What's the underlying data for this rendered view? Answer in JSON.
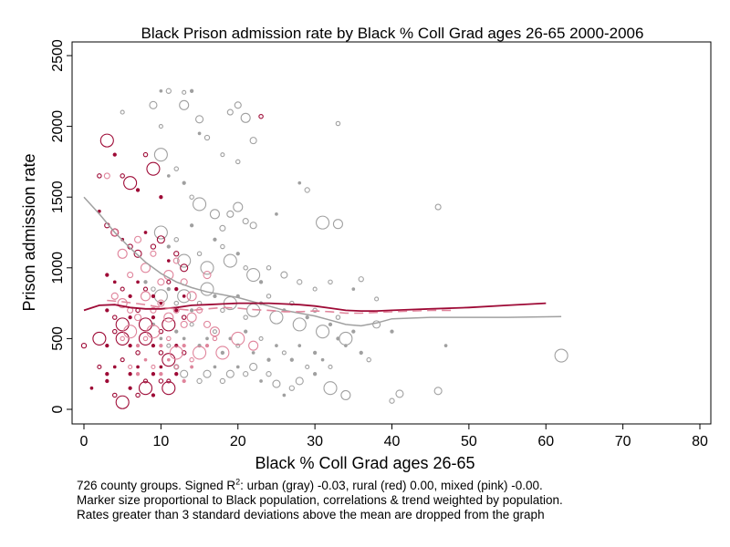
{
  "chart_data": {
    "type": "scatter",
    "title": "Black Prison admission rate by Black % Coll Grad ages 26-65 2000-2006",
    "xlabel": "Black % Coll Grad ages 26-65",
    "ylabel": "Prison admission rate",
    "xlim": [
      0,
      80
    ],
    "ylim": [
      0,
      2500
    ],
    "xticks": [
      0,
      10,
      20,
      30,
      40,
      50,
      60,
      70,
      80
    ],
    "yticks": [
      0,
      500,
      1000,
      1500,
      2000,
      2500
    ],
    "grid": false,
    "legend": "none",
    "colors": {
      "urban": "#a0a0a0",
      "rural": "#9e0a36",
      "mixed": "#e0859c"
    },
    "series": [
      {
        "group": "urban",
        "points": [
          [
            5,
            2100
          ],
          [
            9,
            2150
          ],
          [
            10,
            2250
          ],
          [
            11,
            2250
          ],
          [
            13,
            2240
          ],
          [
            14,
            2250
          ],
          [
            13,
            2150
          ],
          [
            15,
            2050
          ],
          [
            19,
            2100
          ],
          [
            20,
            2150
          ],
          [
            21,
            2060
          ],
          [
            33,
            2020
          ],
          [
            10,
            1800
          ],
          [
            10,
            2000
          ],
          [
            12,
            1700
          ],
          [
            15,
            1950
          ],
          [
            16,
            1920
          ],
          [
            18,
            1800
          ],
          [
            20,
            1750
          ],
          [
            22,
            1900
          ],
          [
            28,
            1600
          ],
          [
            29,
            1550
          ],
          [
            11,
            1650
          ],
          [
            13,
            1600
          ],
          [
            14,
            1500
          ],
          [
            15,
            1450
          ],
          [
            17,
            1380
          ],
          [
            18,
            1280
          ],
          [
            19,
            1380
          ],
          [
            20,
            1430
          ],
          [
            21,
            1330
          ],
          [
            22,
            1300
          ],
          [
            25,
            1380
          ],
          [
            31,
            1320
          ],
          [
            33,
            1310
          ],
          [
            46,
            1430
          ],
          [
            10,
            1250
          ],
          [
            11,
            1150
          ],
          [
            12,
            1200
          ],
          [
            13,
            1050
          ],
          [
            14,
            1300
          ],
          [
            15,
            1100
          ],
          [
            16,
            1000
          ],
          [
            17,
            1200
          ],
          [
            18,
            1150
          ],
          [
            19,
            1050
          ],
          [
            20,
            1100
          ],
          [
            21,
            1000
          ],
          [
            22,
            950
          ],
          [
            23,
            900
          ],
          [
            24,
            1000
          ],
          [
            26,
            950
          ],
          [
            28,
            900
          ],
          [
            30,
            850
          ],
          [
            32,
            900
          ],
          [
            35,
            850
          ],
          [
            36,
            920
          ],
          [
            38,
            780
          ],
          [
            8,
            900
          ],
          [
            9,
            850
          ],
          [
            10,
            800
          ],
          [
            11,
            850
          ],
          [
            12,
            750
          ],
          [
            13,
            800
          ],
          [
            14,
            700
          ],
          [
            15,
            750
          ],
          [
            16,
            850
          ],
          [
            17,
            800
          ],
          [
            18,
            700
          ],
          [
            19,
            750
          ],
          [
            20,
            800
          ],
          [
            21,
            650
          ],
          [
            22,
            700
          ],
          [
            23,
            750
          ],
          [
            24,
            800
          ],
          [
            25,
            650
          ],
          [
            26,
            700
          ],
          [
            27,
            750
          ],
          [
            28,
            600
          ],
          [
            29,
            650
          ],
          [
            30,
            700
          ],
          [
            31,
            550
          ],
          [
            32,
            600
          ],
          [
            33,
            650
          ],
          [
            34,
            500
          ],
          [
            35,
            550
          ],
          [
            38,
            600
          ],
          [
            40,
            550
          ],
          [
            9,
            600
          ],
          [
            10,
            500
          ],
          [
            11,
            450
          ],
          [
            12,
            550
          ],
          [
            13,
            500
          ],
          [
            14,
            600
          ],
          [
            15,
            450
          ],
          [
            16,
            500
          ],
          [
            17,
            550
          ],
          [
            18,
            400
          ],
          [
            19,
            500
          ],
          [
            20,
            450
          ],
          [
            21,
            550
          ],
          [
            22,
            400
          ],
          [
            23,
            500
          ],
          [
            24,
            350
          ],
          [
            25,
            450
          ],
          [
            26,
            400
          ],
          [
            27,
            350
          ],
          [
            28,
            450
          ],
          [
            29,
            300
          ],
          [
            30,
            400
          ],
          [
            31,
            350
          ],
          [
            32,
            300
          ],
          [
            33,
            500
          ],
          [
            34,
            450
          ],
          [
            36,
            400
          ],
          [
            37,
            350
          ],
          [
            12,
            300
          ],
          [
            13,
            250
          ],
          [
            14,
            300
          ],
          [
            15,
            200
          ],
          [
            16,
            250
          ],
          [
            17,
            300
          ],
          [
            18,
            200
          ],
          [
            19,
            250
          ],
          [
            20,
            300
          ],
          [
            21,
            250
          ],
          [
            22,
            300
          ],
          [
            23,
            200
          ],
          [
            24,
            250
          ],
          [
            25,
            180
          ],
          [
            26,
            100
          ],
          [
            27,
            150
          ],
          [
            28,
            200
          ],
          [
            30,
            250
          ],
          [
            32,
            150
          ],
          [
            34,
            100
          ],
          [
            40,
            60
          ],
          [
            41,
            110
          ],
          [
            46,
            130
          ],
          [
            47,
            450
          ],
          [
            62,
            380
          ]
        ]
      },
      {
        "group": "rural",
        "points": [
          [
            2,
            1650
          ],
          [
            3,
            1900
          ],
          [
            4,
            1800
          ],
          [
            5,
            1650
          ],
          [
            6,
            1600
          ],
          [
            7,
            1550
          ],
          [
            8,
            1800
          ],
          [
            9,
            1700
          ],
          [
            10,
            1500
          ],
          [
            23,
            2070
          ],
          [
            2,
            1400
          ],
          [
            3,
            1300
          ],
          [
            4,
            1250
          ],
          [
            5,
            1200
          ],
          [
            6,
            1150
          ],
          [
            7,
            1100
          ],
          [
            8,
            1250
          ],
          [
            9,
            1150
          ],
          [
            10,
            1200
          ],
          [
            11,
            1050
          ],
          [
            12,
            1100
          ],
          [
            13,
            1000
          ],
          [
            3,
            950
          ],
          [
            4,
            900
          ],
          [
            5,
            850
          ],
          [
            6,
            800
          ],
          [
            7,
            900
          ],
          [
            8,
            850
          ],
          [
            9,
            800
          ],
          [
            10,
            750
          ],
          [
            11,
            900
          ],
          [
            12,
            850
          ],
          [
            13,
            800
          ],
          [
            3,
            700
          ],
          [
            4,
            650
          ],
          [
            5,
            600
          ],
          [
            6,
            650
          ],
          [
            7,
            700
          ],
          [
            8,
            600
          ],
          [
            9,
            650
          ],
          [
            10,
            550
          ],
          [
            11,
            600
          ],
          [
            12,
            700
          ],
          [
            13,
            650
          ],
          [
            2,
            500
          ],
          [
            3,
            450
          ],
          [
            4,
            550
          ],
          [
            5,
            500
          ],
          [
            6,
            450
          ],
          [
            7,
            400
          ],
          [
            8,
            500
          ],
          [
            9,
            450
          ],
          [
            10,
            400
          ],
          [
            11,
            350
          ],
          [
            12,
            450
          ],
          [
            13,
            400
          ],
          [
            0,
            450
          ],
          [
            2,
            300
          ],
          [
            3,
            250
          ],
          [
            4,
            300
          ],
          [
            5,
            350
          ],
          [
            6,
            250
          ],
          [
            7,
            300
          ],
          [
            8,
            200
          ],
          [
            9,
            250
          ],
          [
            10,
            300
          ],
          [
            11,
            200
          ],
          [
            12,
            250
          ],
          [
            1,
            150
          ],
          [
            3,
            200
          ],
          [
            4,
            100
          ],
          [
            5,
            50
          ],
          [
            6,
            150
          ],
          [
            7,
            100
          ],
          [
            8,
            150
          ],
          [
            9,
            100
          ],
          [
            10,
            200
          ],
          [
            11,
            150
          ]
        ]
      },
      {
        "group": "mixed",
        "points": [
          [
            3,
            1650
          ],
          [
            4,
            1250
          ],
          [
            5,
            1100
          ],
          [
            6,
            950
          ],
          [
            7,
            1200
          ],
          [
            8,
            1000
          ],
          [
            9,
            1100
          ],
          [
            10,
            900
          ],
          [
            11,
            950
          ],
          [
            12,
            1050
          ],
          [
            13,
            900
          ],
          [
            14,
            800
          ],
          [
            16,
            950
          ],
          [
            4,
            800
          ],
          [
            5,
            750
          ],
          [
            6,
            700
          ],
          [
            7,
            650
          ],
          [
            8,
            800
          ],
          [
            9,
            700
          ],
          [
            10,
            750
          ],
          [
            11,
            650
          ],
          [
            12,
            700
          ],
          [
            13,
            600
          ],
          [
            14,
            650
          ],
          [
            15,
            700
          ],
          [
            16,
            600
          ],
          [
            17,
            550
          ],
          [
            5,
            500
          ],
          [
            6,
            550
          ],
          [
            7,
            450
          ],
          [
            8,
            500
          ],
          [
            9,
            550
          ],
          [
            10,
            450
          ],
          [
            11,
            500
          ],
          [
            12,
            400
          ],
          [
            13,
            450
          ],
          [
            14,
            350
          ],
          [
            15,
            400
          ],
          [
            16,
            450
          ],
          [
            17,
            500
          ],
          [
            18,
            400
          ],
          [
            6,
            300
          ],
          [
            7,
            250
          ],
          [
            8,
            350
          ],
          [
            9,
            300
          ],
          [
            10,
            250
          ],
          [
            11,
            350
          ],
          [
            12,
            300
          ],
          [
            13,
            200
          ],
          [
            14,
            300
          ],
          [
            20,
            500
          ],
          [
            22,
            450
          ]
        ]
      }
    ],
    "trend_lines": [
      {
        "group": "urban",
        "style": "solid",
        "x": [
          0,
          2,
          4,
          6,
          8,
          10,
          12,
          14,
          16,
          18,
          20,
          22,
          24,
          26,
          28,
          30,
          32,
          34,
          36,
          38,
          40,
          45,
          50,
          55,
          62
        ],
        "y": [
          1500,
          1380,
          1250,
          1140,
          1040,
          960,
          900,
          860,
          830,
          810,
          790,
          760,
          730,
          700,
          680,
          660,
          630,
          600,
          590,
          610,
          640,
          650,
          650,
          650,
          655
        ]
      },
      {
        "group": "rural",
        "style": "solid",
        "x": [
          0,
          2,
          4,
          6,
          8,
          10,
          12,
          14,
          16,
          18,
          20,
          22,
          24,
          26,
          28,
          30,
          32,
          34,
          36,
          38,
          40,
          45,
          50,
          55,
          60
        ],
        "y": [
          700,
          735,
          740,
          720,
          710,
          710,
          720,
          735,
          740,
          745,
          750,
          750,
          750,
          745,
          740,
          730,
          715,
          700,
          695,
          695,
          700,
          710,
          720,
          735,
          750
        ]
      },
      {
        "group": "mixed",
        "style": "dashed",
        "x": [
          3,
          5,
          8,
          10,
          12,
          14,
          16,
          18,
          20,
          22,
          24,
          26,
          28,
          30,
          32,
          34,
          36,
          38,
          40,
          45,
          48
        ],
        "y": [
          770,
          760,
          740,
          720,
          710,
          700,
          710,
          720,
          715,
          705,
          700,
          690,
          690,
          695,
          690,
          680,
          680,
          685,
          690,
          700,
          700
        ]
      }
    ],
    "notes": {
      "line1_pre": "726 county groups. Signed R",
      "line1_sup": "2",
      "line1_post": ": urban (gray) -0.03, rural (red) 0.00, mixed (pink) -0.00.",
      "line2": "Marker size proportional to Black population, correlations & trend weighted by population.",
      "line3": "Rates greater than 3 standard deviations above the mean are dropped from the graph"
    }
  }
}
